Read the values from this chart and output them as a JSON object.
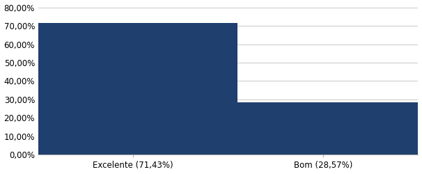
{
  "categories": [
    "Excelente (71,43%)",
    "Bom (28,57%)"
  ],
  "values": [
    71.43,
    28.57
  ],
  "bar_color": "#1F3F6E",
  "ylim": [
    0,
    80
  ],
  "yticks": [
    0,
    10,
    20,
    30,
    40,
    50,
    60,
    70,
    80
  ],
  "ytick_labels": [
    "0,00%",
    "10,00%",
    "20,00%",
    "30,00%",
    "40,00%",
    "50,00%",
    "60,00%",
    "70,00%",
    "80,00%"
  ],
  "background_color": "#FFFFFF",
  "grid_color": "#C8C8C8",
  "tick_fontsize": 8.5,
  "xlabel_fontsize": 8.5,
  "bar_width": 0.55,
  "x_positions": [
    0.25,
    0.75
  ],
  "xlim": [
    0,
    1.0
  ]
}
